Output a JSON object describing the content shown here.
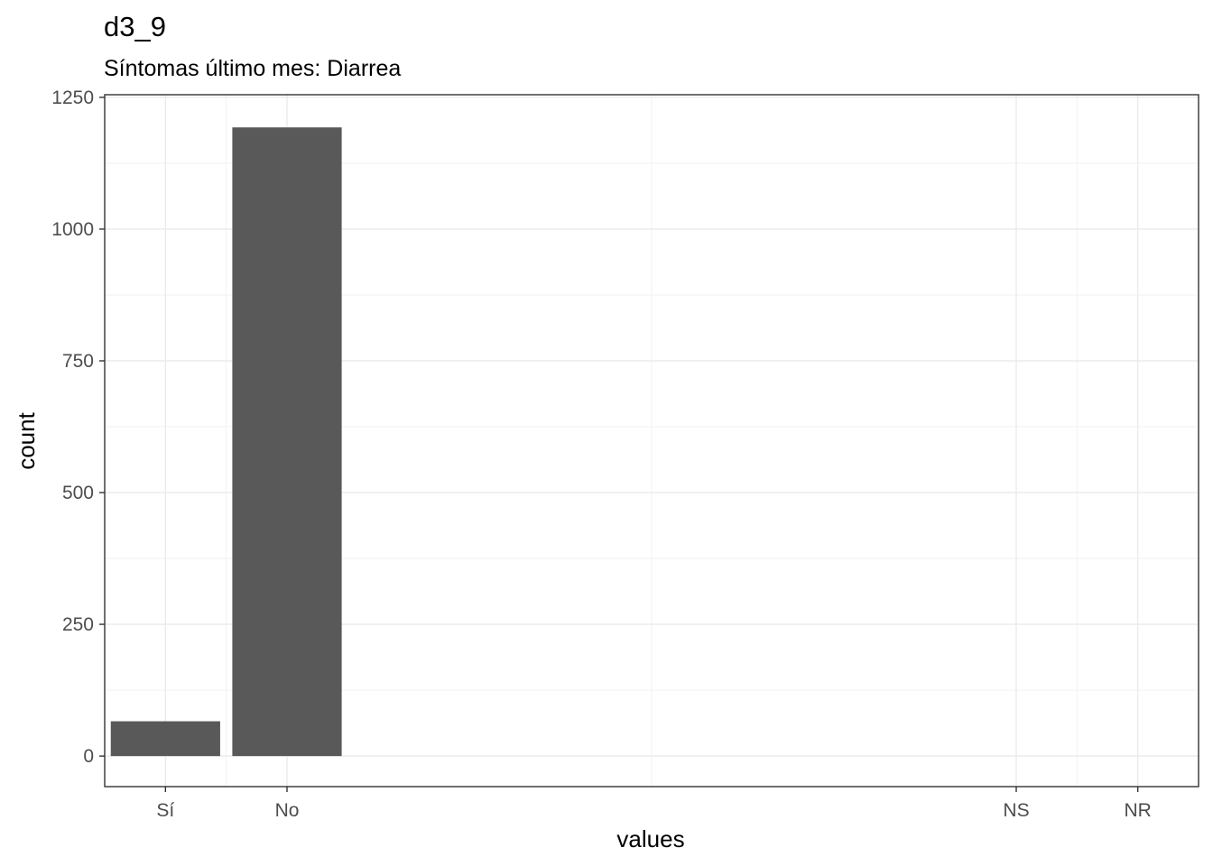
{
  "chart_data": {
    "type": "bar",
    "title": "d3_9",
    "subtitle": "Síntomas último mes: Diarrea",
    "xlabel": "values",
    "ylabel": "count",
    "x": [
      1,
      2,
      8,
      9
    ],
    "categories": [
      "Sí",
      "No",
      "NS",
      "NR"
    ],
    "values": [
      66,
      1193,
      0,
      0
    ],
    "xlim": [
      0.5,
      9.5
    ],
    "ylim": [
      -58,
      1255
    ],
    "yticks": [
      0,
      250,
      500,
      750,
      1000,
      1250
    ],
    "bar_color": "#595959",
    "grid": true,
    "legend": "none"
  }
}
